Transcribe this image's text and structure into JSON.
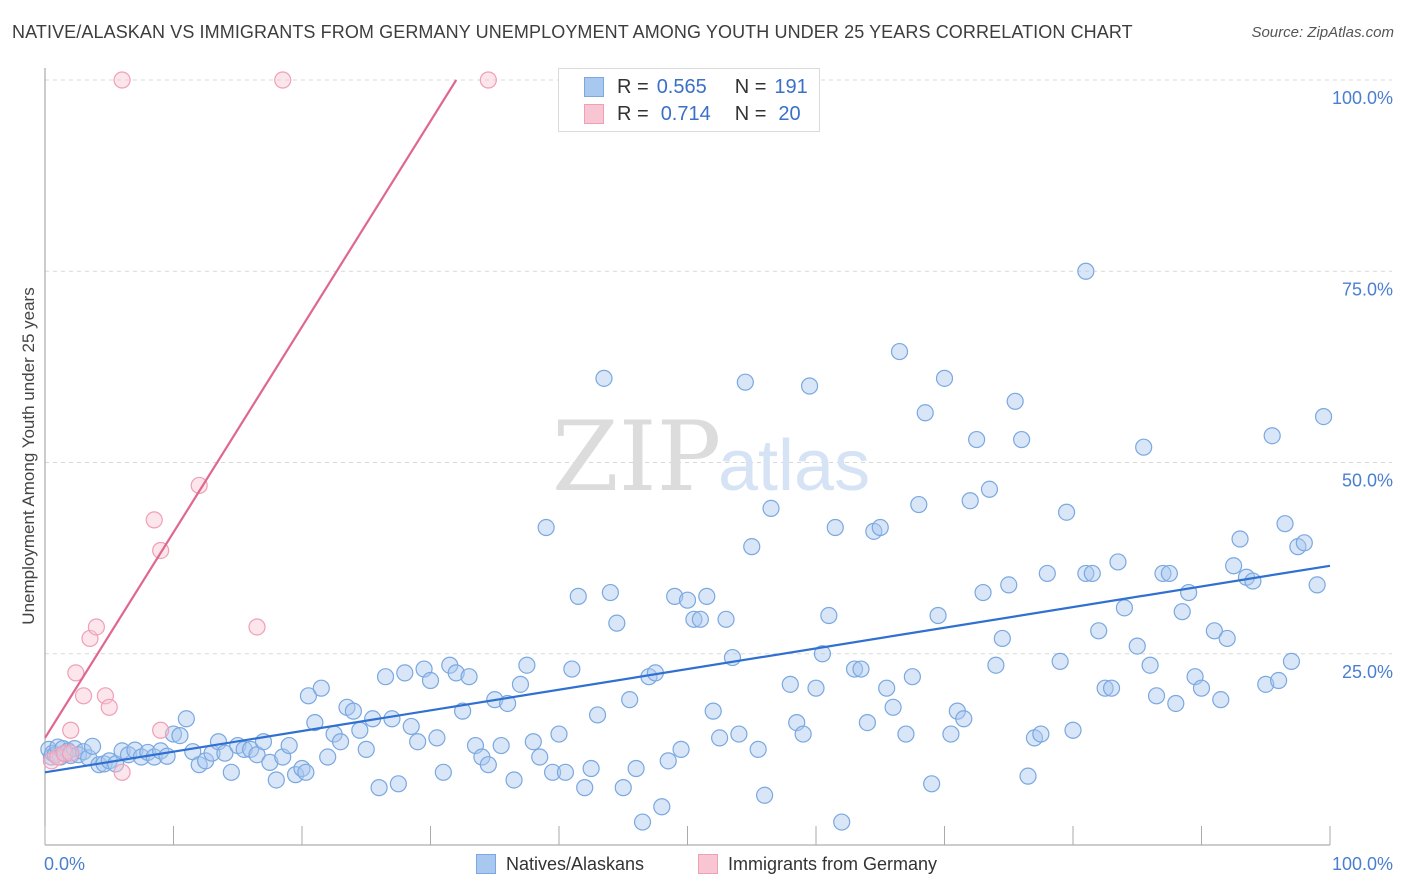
{
  "title": "NATIVE/ALASKAN VS IMMIGRANTS FROM GERMANY UNEMPLOYMENT AMONG YOUTH UNDER 25 YEARS CORRELATION CHART",
  "source": "Source: ZipAtlas.com",
  "watermark": {
    "zip": "ZIP",
    "atlas": "atlas"
  },
  "legend": {
    "r_label": "R =",
    "n_label": "N =",
    "rows": [
      {
        "r": "0.565",
        "n": "191"
      },
      {
        "r": "0.714",
        "n": "20"
      }
    ]
  },
  "bottom_legend": {
    "series1": "Natives/Alaskans",
    "series2": "Immigrants from Germany"
  },
  "colors": {
    "blue_fill": "#a9c8f0",
    "blue_stroke": "#7aa8e0",
    "blue_line": "#2f70d0",
    "pink_fill": "#f8c5d3",
    "pink_stroke": "#ef9fb6",
    "pink_line": "#e06690",
    "grid": "#d8d8d8",
    "tick_text": "#4a7fd0"
  },
  "chart_data": {
    "type": "scatter",
    "title": "NATIVE/ALASKAN VS IMMIGRANTS FROM GERMANY UNEMPLOYMENT AMONG YOUTH UNDER 25 YEARS CORRELATION CHART",
    "xlabel": "",
    "ylabel": "Unemployment Among Youth under 25 years",
    "xlim": [
      0,
      100
    ],
    "ylim": [
      0,
      102
    ],
    "x_tick_labels": [
      "0.0%",
      "100.0%"
    ],
    "y_ticks": [
      25,
      50,
      75,
      100
    ],
    "y_tick_labels": [
      "25.0%",
      "50.0%",
      "75.0%",
      "100.0%"
    ],
    "series": [
      {
        "name": "Natives/Alaskans",
        "r": 0.565,
        "n": 191,
        "trend": {
          "x": [
            0,
            100
          ],
          "y": [
            9.5,
            36.5
          ]
        },
        "points": [
          [
            0.3,
            12.5
          ],
          [
            0.5,
            11.5
          ],
          [
            0.6,
            12
          ],
          [
            0.8,
            11.8
          ],
          [
            1.0,
            12.8
          ],
          [
            1.2,
            11.5
          ],
          [
            1.4,
            12.6
          ],
          [
            1.6,
            11.9
          ],
          [
            1.8,
            12.3
          ],
          [
            2.0,
            11.7
          ],
          [
            2.3,
            12.6
          ],
          [
            2.6,
            11.8
          ],
          [
            3.0,
            12.2
          ],
          [
            3.4,
            11.4
          ],
          [
            3.7,
            12.9
          ],
          [
            4.2,
            10.5
          ],
          [
            4.6,
            10.6
          ],
          [
            5.0,
            11
          ],
          [
            5.5,
            10.6
          ],
          [
            6.0,
            12.3
          ],
          [
            6.5,
            11.8
          ],
          [
            7.0,
            12.4
          ],
          [
            7.5,
            11.5
          ],
          [
            8.0,
            12.1
          ],
          [
            8.5,
            11.5
          ],
          [
            9.0,
            12.3
          ],
          [
            9.5,
            11.6
          ],
          [
            10.0,
            14.5
          ],
          [
            10.5,
            14.3
          ],
          [
            11.0,
            16.5
          ],
          [
            11.5,
            12.2
          ],
          [
            12.0,
            10.5
          ],
          [
            12.5,
            11
          ],
          [
            13.0,
            12
          ],
          [
            13.5,
            13.5
          ],
          [
            14.0,
            12
          ],
          [
            14.5,
            9.5
          ],
          [
            15.0,
            13
          ],
          [
            15.5,
            12.5
          ],
          [
            16.0,
            12.5
          ],
          [
            16.5,
            11.8
          ],
          [
            17.0,
            13.5
          ],
          [
            17.5,
            10.8
          ],
          [
            18.0,
            8.5
          ],
          [
            18.5,
            11.5
          ],
          [
            19.0,
            13
          ],
          [
            19.5,
            9.2
          ],
          [
            20.0,
            10
          ],
          [
            20.3,
            9.5
          ],
          [
            20.5,
            19.5
          ],
          [
            21.0,
            16
          ],
          [
            21.5,
            20.5
          ],
          [
            22.0,
            11.5
          ],
          [
            22.5,
            14.5
          ],
          [
            23.0,
            13.5
          ],
          [
            23.5,
            18
          ],
          [
            24.0,
            17.5
          ],
          [
            24.5,
            15
          ],
          [
            25.0,
            12.5
          ],
          [
            25.5,
            16.5
          ],
          [
            26.0,
            7.5
          ],
          [
            26.5,
            22
          ],
          [
            27.0,
            16.5
          ],
          [
            27.5,
            8
          ],
          [
            28.0,
            22.5
          ],
          [
            28.5,
            15.5
          ],
          [
            29.0,
            13.5
          ],
          [
            29.5,
            23
          ],
          [
            30.0,
            21.5
          ],
          [
            30.5,
            14
          ],
          [
            31.0,
            9.5
          ],
          [
            31.5,
            23.5
          ],
          [
            32.0,
            22.5
          ],
          [
            32.5,
            17.5
          ],
          [
            33.0,
            22
          ],
          [
            33.5,
            13
          ],
          [
            34.0,
            11.5
          ],
          [
            34.5,
            10.5
          ],
          [
            35.0,
            19
          ],
          [
            35.5,
            13
          ],
          [
            36.0,
            18.5
          ],
          [
            36.5,
            8.5
          ],
          [
            37.0,
            21
          ],
          [
            37.5,
            23.5
          ],
          [
            38.0,
            13.5
          ],
          [
            38.5,
            11.5
          ],
          [
            39.0,
            41.5
          ],
          [
            39.5,
            9.5
          ],
          [
            40.0,
            14.5
          ],
          [
            40.5,
            9.5
          ],
          [
            41.0,
            23
          ],
          [
            41.5,
            32.5
          ],
          [
            42.0,
            7.5
          ],
          [
            42.5,
            10
          ],
          [
            43.0,
            17
          ],
          [
            43.5,
            61
          ],
          [
            44.0,
            33
          ],
          [
            44.5,
            29
          ],
          [
            45.0,
            7.5
          ],
          [
            45.5,
            19
          ],
          [
            46.0,
            10
          ],
          [
            46.5,
            3
          ],
          [
            47.0,
            22
          ],
          [
            47.5,
            22.5
          ],
          [
            48.0,
            5
          ],
          [
            48.5,
            11
          ],
          [
            49.0,
            32.5
          ],
          [
            49.5,
            12.5
          ],
          [
            50.0,
            32
          ],
          [
            50.5,
            29.5
          ],
          [
            51.0,
            29.5
          ],
          [
            51.5,
            32.5
          ],
          [
            52.0,
            17.5
          ],
          [
            52.5,
            14
          ],
          [
            53.0,
            29.5
          ],
          [
            53.5,
            24.5
          ],
          [
            54.0,
            14.5
          ],
          [
            54.5,
            60.5
          ],
          [
            55.0,
            39
          ],
          [
            55.5,
            12.5
          ],
          [
            56.0,
            6.5
          ],
          [
            56.5,
            44
          ],
          [
            58.0,
            21
          ],
          [
            58.5,
            16
          ],
          [
            59.0,
            14.5
          ],
          [
            59.5,
            60
          ],
          [
            60.0,
            20.5
          ],
          [
            60.5,
            25
          ],
          [
            61.0,
            30
          ],
          [
            61.5,
            41.5
          ],
          [
            62.0,
            3
          ],
          [
            63.0,
            23
          ],
          [
            63.5,
            23
          ],
          [
            64.0,
            16
          ],
          [
            64.5,
            41
          ],
          [
            65.0,
            41.5
          ],
          [
            65.5,
            20.5
          ],
          [
            66.0,
            18
          ],
          [
            66.5,
            64.5
          ],
          [
            67.0,
            14.5
          ],
          [
            67.5,
            22
          ],
          [
            68.0,
            44.5
          ],
          [
            68.5,
            56.5
          ],
          [
            69.0,
            8
          ],
          [
            69.5,
            30
          ],
          [
            70.0,
            61
          ],
          [
            70.5,
            14.5
          ],
          [
            71.0,
            17.5
          ],
          [
            71.5,
            16.5
          ],
          [
            72.0,
            45
          ],
          [
            72.5,
            53
          ],
          [
            73.0,
            33
          ],
          [
            73.5,
            46.5
          ],
          [
            74.0,
            23.5
          ],
          [
            74.5,
            27
          ],
          [
            75.0,
            34
          ],
          [
            75.5,
            58
          ],
          [
            76.0,
            53
          ],
          [
            76.5,
            9
          ],
          [
            77.0,
            14
          ],
          [
            77.5,
            14.5
          ],
          [
            78.0,
            35.5
          ],
          [
            79.0,
            24
          ],
          [
            79.5,
            43.5
          ],
          [
            80.0,
            15
          ],
          [
            81.0,
            35.5
          ],
          [
            81.5,
            35.5
          ],
          [
            82.0,
            28
          ],
          [
            82.5,
            20.5
          ],
          [
            83.0,
            20.5
          ],
          [
            83.5,
            37
          ],
          [
            84.0,
            31
          ],
          [
            85.0,
            26
          ],
          [
            85.5,
            52
          ],
          [
            86.0,
            23.5
          ],
          [
            86.5,
            19.5
          ],
          [
            87.0,
            35.5
          ],
          [
            87.5,
            35.5
          ],
          [
            88.0,
            18.5
          ],
          [
            88.5,
            30.5
          ],
          [
            89.0,
            33
          ],
          [
            89.5,
            22
          ],
          [
            90.0,
            20.5
          ],
          [
            91.0,
            28
          ],
          [
            91.5,
            19
          ],
          [
            92.0,
            27
          ],
          [
            92.5,
            36.5
          ],
          [
            93.0,
            40
          ],
          [
            93.5,
            35
          ],
          [
            94.0,
            34.5
          ],
          [
            95.0,
            21
          ],
          [
            95.5,
            53.5
          ],
          [
            96.0,
            21.5
          ],
          [
            96.5,
            42
          ],
          [
            97.0,
            24
          ],
          [
            97.5,
            39
          ],
          [
            98.0,
            39.5
          ],
          [
            99.0,
            34
          ],
          [
            99.5,
            56
          ],
          [
            81.0,
            75
          ]
        ]
      },
      {
        "name": "Immigrants from Germany",
        "r": 0.714,
        "n": 20,
        "trend": {
          "x": [
            0,
            32
          ],
          "y": [
            14,
            100
          ]
        },
        "points": [
          [
            0.5,
            11
          ],
          [
            1,
            11.5
          ],
          [
            1.5,
            12
          ],
          [
            2,
            15
          ],
          [
            2.4,
            22.5
          ],
          [
            3,
            19.5
          ],
          [
            3.5,
            27
          ],
          [
            4,
            28.5
          ],
          [
            4.7,
            19.5
          ],
          [
            5,
            18
          ],
          [
            6,
            9.5
          ],
          [
            8.5,
            42.5
          ],
          [
            9,
            38.5
          ],
          [
            12,
            47
          ],
          [
            9,
            15
          ],
          [
            16.5,
            28.5
          ],
          [
            6,
            100
          ],
          [
            18.5,
            100
          ],
          [
            34.5,
            100
          ],
          [
            2,
            12
          ]
        ]
      }
    ]
  }
}
